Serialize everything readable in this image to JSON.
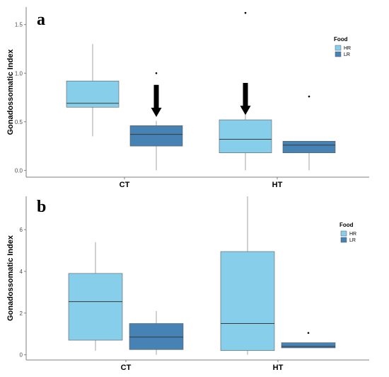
{
  "chart_data": [
    {
      "type": "boxplot",
      "panel_label": "a",
      "title": "",
      "xlabel": "",
      "ylabel": "Gonadossomatic Index",
      "categories": [
        "CT",
        "HT"
      ],
      "ylim": [
        -0.07,
        1.68
      ],
      "yticks": [
        0.0,
        0.5,
        1.0,
        1.5
      ],
      "ytick_labels": [
        "0.0",
        "0.5",
        "1.0",
        "1.5"
      ],
      "grid": false,
      "legend": {
        "title": "Food",
        "position": "right",
        "entries": [
          "HR",
          "LR"
        ]
      },
      "colors": {
        "HR": "#87ceeb",
        "LR": "#4682b4"
      },
      "series": [
        {
          "name": "HR",
          "boxes": [
            {
              "min": 0.35,
              "q1": 0.65,
              "median": 0.69,
              "q3": 0.92,
              "max": 1.3,
              "outliers": []
            },
            {
              "min": 0.0,
              "q1": 0.18,
              "median": 0.32,
              "q3": 0.52,
              "max": 0.62,
              "outliers": [
                1.62
              ]
            }
          ]
        },
        {
          "name": "LR",
          "boxes": [
            {
              "min": 0.0,
              "q1": 0.25,
              "median": 0.37,
              "q3": 0.46,
              "max": 0.51,
              "outliers": [
                1.0
              ]
            },
            {
              "min": 0.0,
              "q1": 0.18,
              "median": 0.26,
              "q3": 0.3,
              "max": 0.3,
              "outliers": [
                0.76
              ]
            }
          ]
        }
      ],
      "annotations": [
        {
          "type": "arrow",
          "category": "CT",
          "series": "LR",
          "from_y": 0.88,
          "to_y": 0.55
        },
        {
          "type": "arrow",
          "category": "HT",
          "series": "HR",
          "from_y": 0.9,
          "to_y": 0.57
        }
      ]
    },
    {
      "type": "boxplot",
      "panel_label": "b",
      "title": "",
      "xlabel": "",
      "ylabel": "Gonadossomatic Index",
      "categories": [
        "CT",
        "HT"
      ],
      "ylim": [
        -0.25,
        7.6
      ],
      "yticks": [
        0,
        2,
        4,
        6
      ],
      "ytick_labels": [
        "0",
        "2",
        "4",
        "6"
      ],
      "grid": false,
      "legend": {
        "title": "Food",
        "position": "right",
        "entries": [
          "HR",
          "LR"
        ]
      },
      "colors": {
        "HR": "#87ceeb",
        "LR": "#4682b4"
      },
      "series": [
        {
          "name": "HR",
          "boxes": [
            {
              "min": 0.2,
              "q1": 0.7,
              "median": 2.55,
              "q3": 3.9,
              "max": 5.4,
              "outliers": []
            },
            {
              "min": 0.0,
              "q1": 0.2,
              "median": 1.5,
              "q3": 4.95,
              "max": 7.6,
              "outliers": []
            }
          ]
        },
        {
          "name": "LR",
          "boxes": [
            {
              "min": 0.0,
              "q1": 0.25,
              "median": 0.85,
              "q3": 1.5,
              "max": 2.1,
              "outliers": []
            },
            {
              "min": 0.33,
              "q1": 0.33,
              "median": 0.4,
              "q3": 0.58,
              "max": 0.58,
              "outliers": [
                1.05
              ]
            }
          ]
        }
      ],
      "annotations": []
    }
  ]
}
